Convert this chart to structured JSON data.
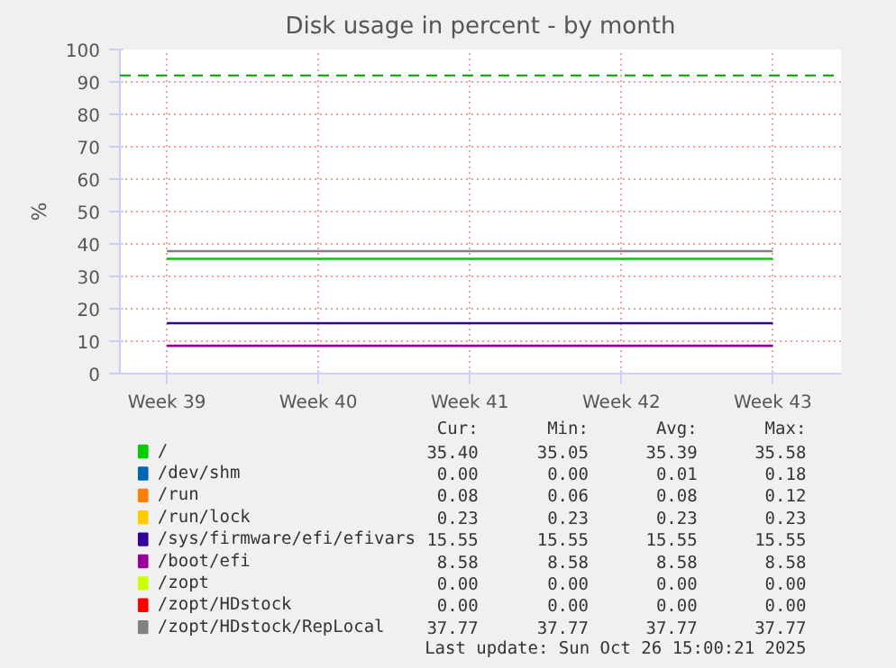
{
  "chart_data": {
    "type": "line",
    "title": "Disk usage in percent - by month",
    "ylabel": "%",
    "categories": [
      "Week 39",
      "Week 40",
      "Week 41",
      "Week 42",
      "Week 43"
    ],
    "ylim": [
      0,
      100
    ],
    "yticks": [
      0,
      10,
      20,
      30,
      40,
      50,
      60,
      70,
      80,
      90,
      100
    ],
    "grid": true,
    "legend": "bottom",
    "line_style": "solid",
    "marker": "none",
    "series": [
      {
        "name": "/",
        "color": "#00cc00",
        "values": [
          35.4,
          35.4,
          35.4,
          35.4,
          35.4
        ]
      },
      {
        "name": "/dev/shm",
        "color": "#0066b3",
        "values": [
          null,
          null,
          null,
          null,
          null
        ]
      },
      {
        "name": "/run",
        "color": "#ff8000",
        "values": [
          null,
          null,
          null,
          null,
          null
        ]
      },
      {
        "name": "/run/lock",
        "color": "#ffcc00",
        "values": [
          null,
          null,
          null,
          null,
          null
        ]
      },
      {
        "name": "/sys/firmware/efi/efivars",
        "color": "#330099",
        "values": [
          15.55,
          15.55,
          15.55,
          15.55,
          15.55
        ]
      },
      {
        "name": "/boot/efi",
        "color": "#990099",
        "values": [
          8.58,
          8.58,
          8.58,
          8.58,
          8.58
        ]
      },
      {
        "name": "/zopt",
        "color": "#ccff00",
        "values": [
          null,
          null,
          null,
          null,
          null
        ]
      },
      {
        "name": "/zopt/HDstock",
        "color": "#ff0000",
        "values": [
          null,
          null,
          null,
          null,
          null
        ]
      },
      {
        "name": "/zopt/HDstock/RepLocal",
        "color": "#808080",
        "values": [
          37.77,
          37.77,
          37.77,
          37.77,
          37.77
        ]
      }
    ],
    "ref_lines": [
      {
        "axis": "y",
        "value": 92,
        "color": "#00a000",
        "line_style": "dashed"
      }
    ],
    "annotations": [
      "Cur:",
      "Min:",
      "Avg:",
      "Max:",
      "35.40",
      "35.05",
      "35.39",
      "35.58",
      "0.00",
      "0.00",
      "0.01",
      "0.18",
      "0.08",
      "0.06",
      "0.08",
      "0.12",
      "0.23",
      "0.23",
      "0.23",
      "0.23",
      "15.55",
      "15.55",
      "15.55",
      "15.55",
      "8.58",
      "8.58",
      "8.58",
      "8.58",
      "0.00",
      "0.00",
      "0.00",
      "0.00",
      "0.00",
      "0.00",
      "0.00",
      "0.00",
      "37.77",
      "37.77",
      "37.77",
      "37.77",
      "Last update: Sun Oct 26 15:00:21 2025"
    ]
  }
}
